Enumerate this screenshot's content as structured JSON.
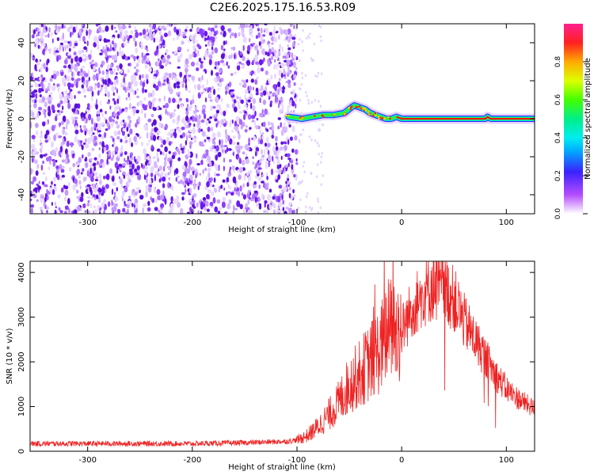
{
  "title": "C2E6.2025.175.16.53.R09",
  "chart_data": [
    {
      "type": "heatmap",
      "xlabel": "Height of straight line (km)",
      "ylabel": "Frequency (Hz)",
      "xlim": [
        -355,
        127
      ],
      "ylim": [
        -50,
        50
      ],
      "x_ticks": [
        -300,
        -200,
        -100,
        0,
        100
      ],
      "y_ticks": [
        -40,
        -20,
        0,
        20,
        40
      ],
      "colorbar": {
        "label": "Normalized spectral amplitude",
        "range": [
          0,
          1
        ],
        "ticks": [
          0.0,
          0.2,
          0.4,
          0.6,
          0.8
        ],
        "tick_labels": [
          "0.0",
          "0.2",
          "0.4",
          "0.6",
          "0.8"
        ],
        "colormap": "rainbow (white → purple → blue → cyan → green → yellow → red → magenta)"
      },
      "noise_region": {
        "x_from": -355,
        "x_to": -100,
        "amplitude_range": [
          0.0,
          0.15
        ]
      },
      "signal_trace": {
        "x": [
          -108,
          -95,
          -85,
          -75,
          -65,
          -55,
          -48,
          -45,
          -40,
          -35,
          -30,
          -25,
          -20,
          -15,
          -10,
          -5,
          0,
          10,
          30,
          60,
          80,
          82,
          85,
          100,
          127
        ],
        "y": [
          1,
          0,
          1,
          2,
          2,
          3,
          6,
          7,
          6,
          5,
          3,
          2,
          1,
          0,
          0,
          1,
          0,
          0,
          0,
          0,
          0,
          1,
          0,
          0,
          0
        ]
      }
    },
    {
      "type": "line",
      "xlabel": "Height of straight line (km)",
      "ylabel": "SNR (10 * v/v)",
      "xlim": [
        -355,
        127
      ],
      "ylim": [
        0,
        4250
      ],
      "x_ticks": [
        -300,
        -200,
        -100,
        0,
        100
      ],
      "y_ticks": [
        0,
        1000,
        2000,
        3000,
        4000
      ],
      "series": [
        {
          "color": "#ee2222",
          "x": [
            -355,
            -330,
            -300,
            -250,
            -200,
            -150,
            -110,
            -100,
            -90,
            -80,
            -70,
            -60,
            -50,
            -40,
            -30,
            -20,
            -15,
            -10,
            -5,
            0,
            10,
            20,
            30,
            40,
            50,
            60,
            70,
            80,
            90,
            100,
            110,
            120,
            127
          ],
          "y": [
            170,
            170,
            170,
            170,
            170,
            190,
            220,
            250,
            350,
            550,
            800,
            1100,
            1500,
            1750,
            2000,
            2300,
            2600,
            2800,
            2600,
            2700,
            3200,
            3500,
            3700,
            3650,
            3400,
            2900,
            2500,
            2100,
            1700,
            1400,
            1200,
            1050,
            950
          ]
        }
      ]
    }
  ]
}
